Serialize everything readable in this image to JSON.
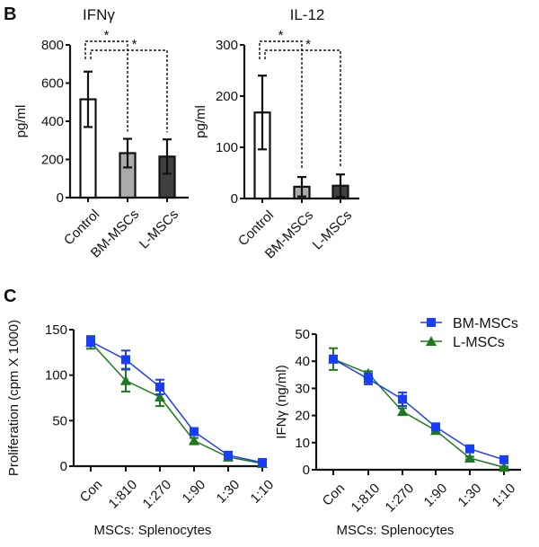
{
  "panels": {
    "B": "B",
    "C": "C"
  },
  "colors": {
    "control": "#ffffff",
    "bm_mscs_bar": "#aaaaaa",
    "l_mscs_bar": "#404040",
    "bm_mscs_line": "#1a3cff",
    "l_mscs_line": "#1e7a1e",
    "axis": "#111111"
  },
  "chart_data": [
    {
      "id": "ifng-bar",
      "type": "bar",
      "title": "IFNγ",
      "xlabel": "",
      "ylabel": "pg/ml",
      "ylim": [
        0,
        800
      ],
      "yticks": [
        0,
        200,
        400,
        600,
        800
      ],
      "categories": [
        "Control",
        "BM-MSCs",
        "L-MSCs"
      ],
      "values": [
        515,
        233,
        215
      ],
      "errors": [
        145,
        75,
        90
      ],
      "significance": [
        {
          "from": "Control",
          "to": "BM-MSCs",
          "label": "*"
        },
        {
          "from": "Control",
          "to": "L-MSCs",
          "label": "*"
        }
      ],
      "grid": false
    },
    {
      "id": "il12-bar",
      "type": "bar",
      "title": "IL-12",
      "xlabel": "",
      "ylabel": "pg/ml",
      "ylim": [
        0,
        300
      ],
      "yticks": [
        0,
        100,
        200,
        300
      ],
      "categories": [
        "Control",
        "BM-MSCs",
        "L-MSCs"
      ],
      "values": [
        168,
        23,
        25
      ],
      "errors": [
        72,
        19,
        22
      ],
      "significance": [
        {
          "from": "Control",
          "to": "BM-MSCs",
          "label": "*"
        },
        {
          "from": "Control",
          "to": "L-MSCs",
          "label": "*"
        }
      ],
      "grid": false
    },
    {
      "id": "proliferation-line",
      "type": "line",
      "title": "",
      "xlabel": "MSCs: Splenocytes",
      "ylabel": "Proliferation (cpm X 1000)",
      "ylim": [
        0,
        150
      ],
      "yticks": [
        0,
        50,
        100,
        150
      ],
      "categories": [
        "Con",
        "1:810",
        "1:270",
        "1:90",
        "1:30",
        "1:10"
      ],
      "series": [
        {
          "name": "BM-MSCs",
          "marker": "square",
          "values": [
            137,
            117,
            87,
            38,
            12,
            4
          ],
          "errors": [
            5,
            10,
            8,
            2,
            2,
            1
          ]
        },
        {
          "name": "L-MSCs",
          "marker": "triangle",
          "values": [
            136,
            94,
            76,
            28,
            10,
            3
          ],
          "errors": [
            7,
            12,
            10,
            3,
            2,
            1
          ]
        }
      ],
      "grid": false
    },
    {
      "id": "ifng-line",
      "type": "line",
      "title": "",
      "xlabel": "MSCs: Splenocytes",
      "ylabel": "IFNγ (ng/ml)",
      "ylim": [
        0,
        50
      ],
      "yticks": [
        0,
        10,
        20,
        30,
        40,
        50
      ],
      "categories": [
        "Con",
        "1:810",
        "1:270",
        "1:90",
        "1:30",
        "1:10"
      ],
      "series": [
        {
          "name": "BM-MSCs",
          "marker": "square",
          "values": [
            40.8,
            33.5,
            26,
            15.8,
            7.7,
            3.7
          ],
          "errors": [
            1,
            2,
            2.5,
            0.8,
            0.5,
            0.4
          ]
        },
        {
          "name": "L-MSCs",
          "marker": "triangle",
          "values": [
            40.8,
            35.5,
            21.5,
            14.5,
            4.3,
            0.9
          ],
          "errors": [
            4,
            0.8,
            1.2,
            0.8,
            0.5,
            0.3
          ]
        }
      ],
      "legend": {
        "placement": "top-right",
        "entries": [
          "BM-MSCs",
          "L-MSCs"
        ]
      },
      "grid": false
    }
  ]
}
